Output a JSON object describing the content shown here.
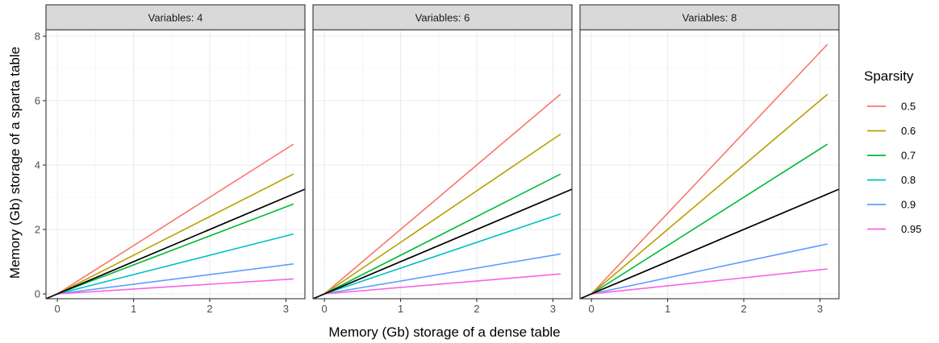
{
  "chart_data": {
    "type": "line",
    "xlabel": "Memory (Gb) storage of a dense table",
    "ylabel": "Memory (Gb) storage of a sparta table",
    "xlim": [
      -0.15,
      3.25
    ],
    "ylim": [
      -0.15,
      8.2
    ],
    "x_ticks": [
      0,
      1,
      2,
      3
    ],
    "y_ticks": [
      0,
      2,
      4,
      6,
      8
    ],
    "grid": true,
    "legend": {
      "title": "Sparsity",
      "position": "right"
    },
    "reference_line": {
      "slope": 1,
      "intercept": 0,
      "color": "#000000"
    },
    "facets": [
      {
        "label": "Variables: 4",
        "series": [
          {
            "name": "0.5",
            "color": "#F8766D",
            "x": [
              0,
              3.1
            ],
            "y": [
              0,
              4.65
            ]
          },
          {
            "name": "0.6",
            "color": "#B79F00",
            "x": [
              0,
              3.1
            ],
            "y": [
              0,
              3.72
            ]
          },
          {
            "name": "0.7",
            "color": "#00BA38",
            "x": [
              0,
              3.1
            ],
            "y": [
              0,
              2.79
            ]
          },
          {
            "name": "0.8",
            "color": "#00BFC4",
            "x": [
              0,
              3.1
            ],
            "y": [
              0,
              1.86
            ]
          },
          {
            "name": "0.9",
            "color": "#619CFF",
            "x": [
              0,
              3.1
            ],
            "y": [
              0,
              0.93
            ]
          },
          {
            "name": "0.95",
            "color": "#F564E3",
            "x": [
              0,
              3.1
            ],
            "y": [
              0,
              0.465
            ]
          }
        ]
      },
      {
        "label": "Variables: 6",
        "series": [
          {
            "name": "0.5",
            "color": "#F8766D",
            "x": [
              0,
              3.1
            ],
            "y": [
              0,
              6.2
            ]
          },
          {
            "name": "0.6",
            "color": "#B79F00",
            "x": [
              0,
              3.1
            ],
            "y": [
              0,
              4.96
            ]
          },
          {
            "name": "0.7",
            "color": "#00BA38",
            "x": [
              0,
              3.1
            ],
            "y": [
              0,
              3.72
            ]
          },
          {
            "name": "0.8",
            "color": "#00BFC4",
            "x": [
              0,
              3.1
            ],
            "y": [
              0,
              2.48
            ]
          },
          {
            "name": "0.9",
            "color": "#619CFF",
            "x": [
              0,
              3.1
            ],
            "y": [
              0,
              1.24
            ]
          },
          {
            "name": "0.95",
            "color": "#F564E3",
            "x": [
              0,
              3.1
            ],
            "y": [
              0,
              0.62
            ]
          }
        ]
      },
      {
        "label": "Variables: 8",
        "series": [
          {
            "name": "0.5",
            "color": "#F8766D",
            "x": [
              0,
              3.1
            ],
            "y": [
              0,
              7.75
            ]
          },
          {
            "name": "0.6",
            "color": "#B79F00",
            "x": [
              0,
              3.1
            ],
            "y": [
              0,
              6.2
            ]
          },
          {
            "name": "0.7",
            "color": "#00BA38",
            "x": [
              0,
              3.1
            ],
            "y": [
              0,
              4.65
            ]
          },
          {
            "name": "0.9",
            "color": "#619CFF",
            "x": [
              0,
              3.1
            ],
            "y": [
              0,
              1.55
            ]
          },
          {
            "name": "0.95",
            "color": "#F564E3",
            "x": [
              0,
              3.1
            ],
            "y": [
              0,
              0.775
            ]
          }
        ]
      }
    ],
    "legend_items": [
      {
        "name": "0.5",
        "color": "#F8766D"
      },
      {
        "name": "0.6",
        "color": "#B79F00"
      },
      {
        "name": "0.7",
        "color": "#00BA38"
      },
      {
        "name": "0.8",
        "color": "#00BFC4"
      },
      {
        "name": "0.9",
        "color": "#619CFF"
      },
      {
        "name": "0.95",
        "color": "#F564E3"
      }
    ]
  }
}
